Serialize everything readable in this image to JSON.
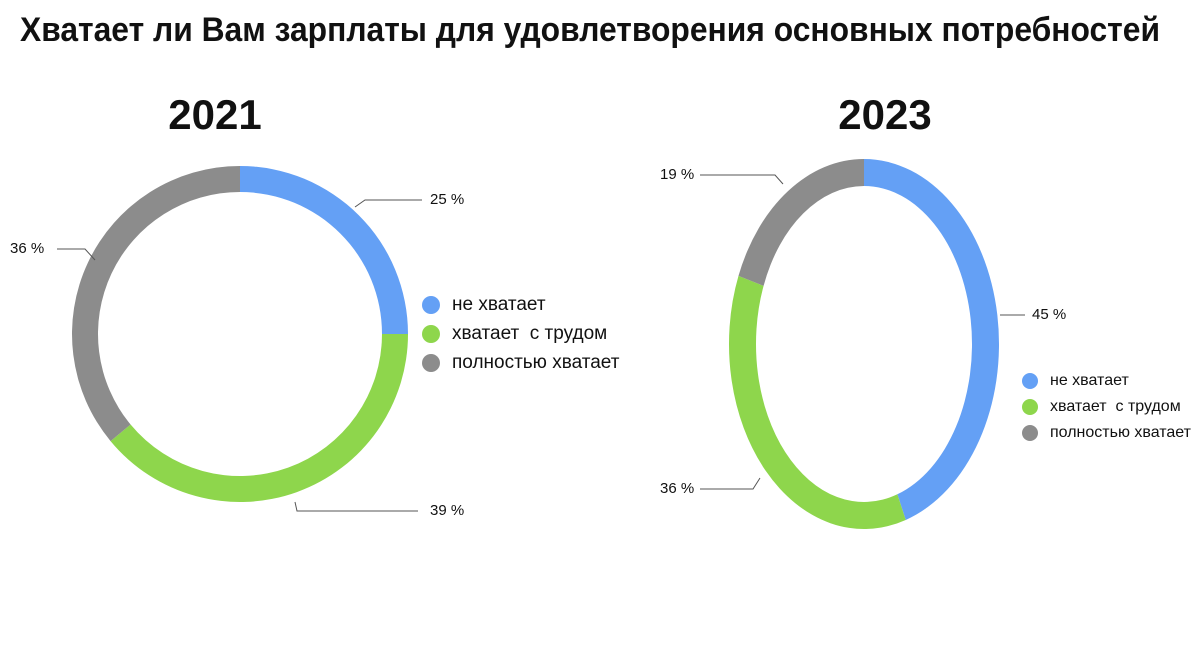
{
  "title": "Хватает ли Вам зарплаты для удовлетворения основных потребностей",
  "chart_data": [
    {
      "type": "donut",
      "title": "2021",
      "categories": [
        "не хватает",
        "хватает  с трудом",
        "полностью хватает"
      ],
      "values": [
        25,
        39,
        36
      ],
      "value_labels": [
        "25 %",
        "39 %",
        "36 %"
      ],
      "colors": [
        "#64a0f5",
        "#8ed64c",
        "#8c8c8c"
      ]
    },
    {
      "type": "donut",
      "title": "2023",
      "categories": [
        "не хватает",
        "хватает  с трудом",
        "полностью хватает"
      ],
      "values": [
        45,
        36,
        19
      ],
      "value_labels": [
        "45 %",
        "36 %",
        "19 %"
      ],
      "colors": [
        "#64a0f5",
        "#8ed64c",
        "#8c8c8c"
      ]
    }
  ]
}
